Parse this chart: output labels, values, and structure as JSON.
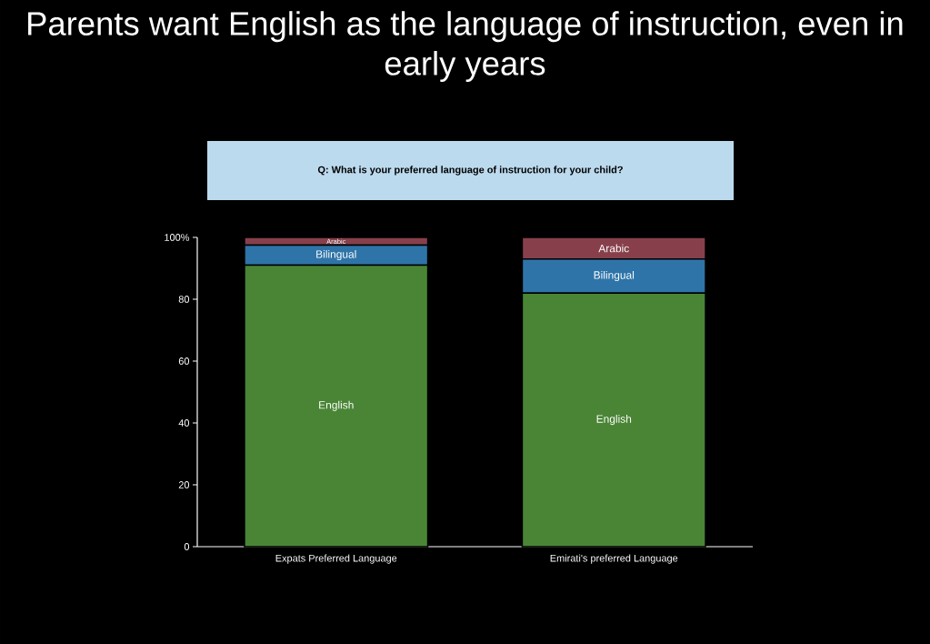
{
  "chart_data": {
    "type": "bar",
    "stacked": true,
    "title": "Parents want English as the language of instruction, even in early years",
    "annotations": [
      "Q: What is your preferred language of instruction for your child?"
    ],
    "categories": [
      "Expats Preferred Language",
      "Emirati's preferred Language"
    ],
    "series": [
      {
        "name": "English",
        "color": "#4a8536",
        "values": [
          91,
          82
        ]
      },
      {
        "name": "Bilingual",
        "color": "#2e74a8",
        "values": [
          6.5,
          11
        ]
      },
      {
        "name": "Arabic",
        "color": "#87404b",
        "values": [
          2.5,
          7
        ]
      }
    ],
    "ylim": [
      0,
      100
    ],
    "yticks": [
      0,
      20,
      40,
      60,
      80,
      {
        "value": 100,
        "label": "100%"
      }
    ],
    "grid": false
  }
}
